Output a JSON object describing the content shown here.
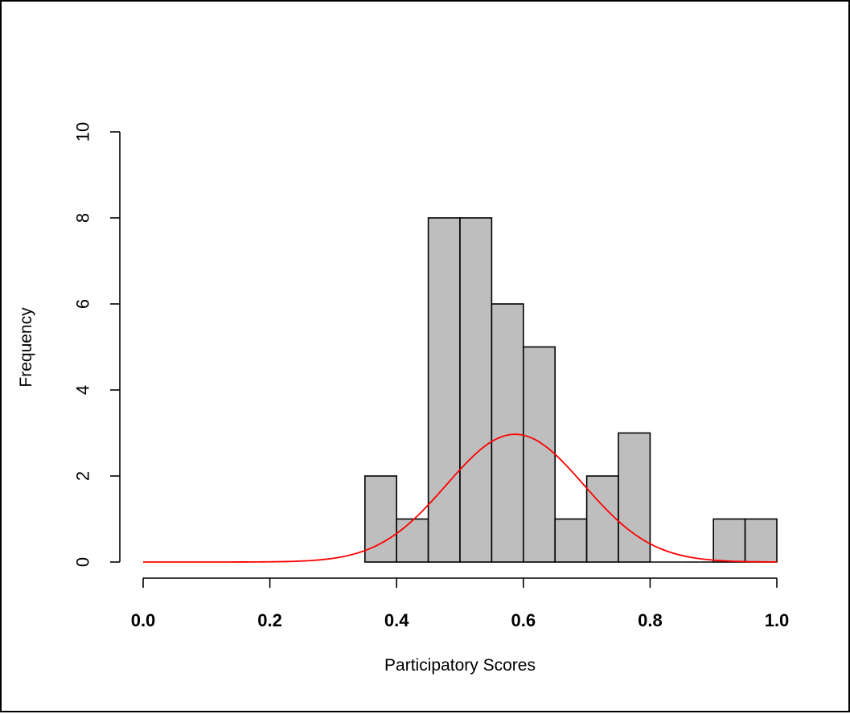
{
  "chart_data": {
    "type": "bar",
    "title": "",
    "xlabel": "Participatory Scores",
    "ylabel": "Frequency",
    "xlim": [
      0.0,
      1.0
    ],
    "ylim": [
      0,
      10
    ],
    "x_ticks": [
      "0.0",
      "0.2",
      "0.4",
      "0.6",
      "0.8",
      "1.0"
    ],
    "y_ticks": [
      "0",
      "2",
      "4",
      "6",
      "8",
      "10"
    ],
    "bin_width": 0.05,
    "bins": [
      {
        "start": 0.35,
        "end": 0.4,
        "value": 2
      },
      {
        "start": 0.4,
        "end": 0.45,
        "value": 1
      },
      {
        "start": 0.45,
        "end": 0.5,
        "value": 8
      },
      {
        "start": 0.5,
        "end": 0.55,
        "value": 8
      },
      {
        "start": 0.55,
        "end": 0.6,
        "value": 6
      },
      {
        "start": 0.6,
        "end": 0.65,
        "value": 5
      },
      {
        "start": 0.65,
        "end": 0.7,
        "value": 1
      },
      {
        "start": 0.7,
        "end": 0.75,
        "value": 2
      },
      {
        "start": 0.75,
        "end": 0.8,
        "value": 3
      },
      {
        "start": 0.8,
        "end": 0.85,
        "value": 0
      },
      {
        "start": 0.85,
        "end": 0.9,
        "value": 0
      },
      {
        "start": 0.9,
        "end": 0.95,
        "value": 1
      },
      {
        "start": 0.95,
        "end": 1.0,
        "value": 1
      }
    ],
    "normal_curve": {
      "mean": 0.587,
      "sd": 0.108,
      "peak": 2.97,
      "color": "#ff0000"
    },
    "bar_fill": "#bebebe",
    "bar_stroke": "#000000",
    "grid": false,
    "legend": "none"
  }
}
